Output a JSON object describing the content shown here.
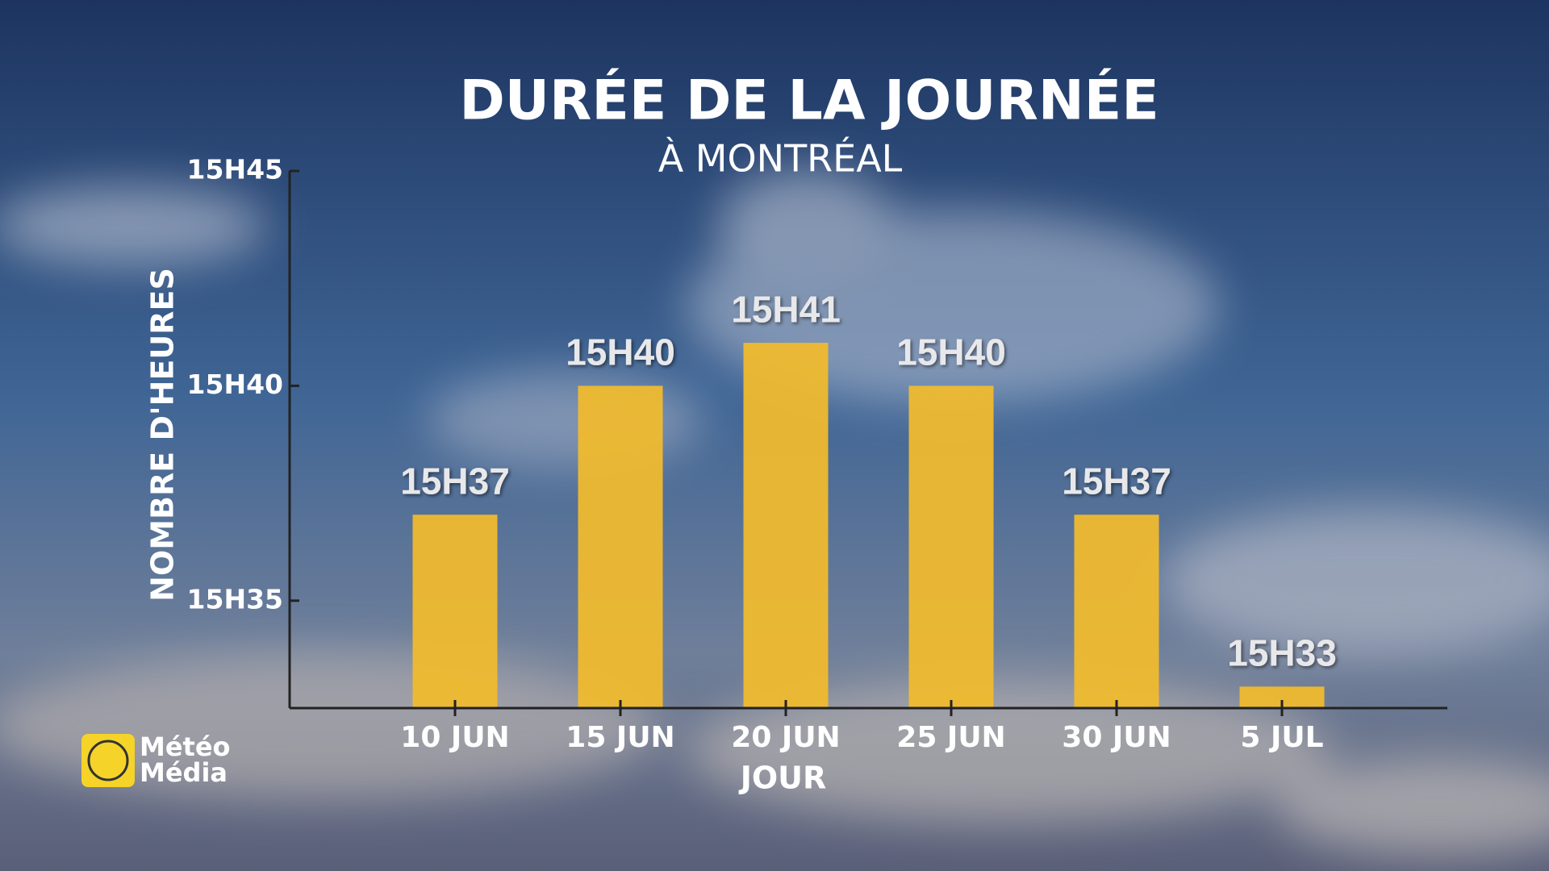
{
  "chart_data": {
    "type": "bar",
    "title": "DURÉE DE LA JOURNÉE",
    "subtitle": "À MONTRÉAL",
    "x_label": "JOUR",
    "y_label": "NOMBRE D'HEURES",
    "categories": [
      "10 JUN",
      "15 JUN",
      "20 JUN",
      "25 JUN",
      "30 JUN",
      "5 JUL"
    ],
    "values": [
      937,
      940,
      941,
      940,
      937,
      933
    ],
    "value_labels": [
      "15H37",
      "15H40",
      "15H41",
      "15H40",
      "15H37",
      "15H33"
    ],
    "color": "#f2bb2c",
    "ylim": [
      932.5,
      945
    ],
    "yticks": [
      {
        "value": 935,
        "label": "15H35"
      },
      {
        "value": 940,
        "label": "15H40"
      },
      {
        "value": 945,
        "label": "15H45"
      }
    ],
    "grid": false
  },
  "logo": {
    "line1": "Météo",
    "line2": "Média"
  }
}
